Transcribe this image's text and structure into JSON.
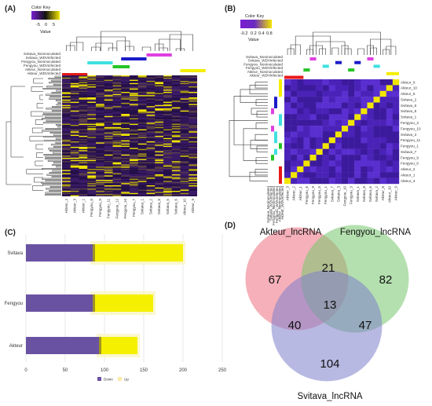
{
  "panels": {
    "a": {
      "label": "(A)",
      "color_key": {
        "title": "Color Key",
        "value_label": "Value",
        "ticks": [
          "-5",
          "0",
          "5"
        ],
        "low_color": "#7a1fd1",
        "mid_color": "#111111",
        "high_color": "#f2e600"
      },
      "side_labels": [
        "Svitava_Noninoculated",
        "Svitava_WDVinfected",
        "Fengyou_Noninoculated",
        "Fengyou_WDVinfected",
        "Akteur_Noninoculated",
        "Akteur_WDVinfected"
      ],
      "columns": [
        "Akteur_2",
        "Akteur_3",
        "Akteur_1",
        "Fengyou_8",
        "Fengyou_9",
        "Fengyou_11",
        "Fengyou_12",
        "Fengyou_10",
        "Fengyou_7",
        "Svitava_1",
        "Svitava_2",
        "Svitava_8",
        "Svitava_5",
        "Svitava_6",
        "Akteur_10",
        "Akteur_9"
      ]
    },
    "b": {
      "label": "(B)",
      "color_key": {
        "title": "Color Key",
        "value_label": "Value",
        "ticks": [
          "-0.2",
          "0.2",
          "0.4",
          "0.8"
        ],
        "low_color": "#7a1fd1",
        "high_color": "#f2e600"
      },
      "side_labels": [
        "Svitava_Noninoculated",
        "Svitava_WDVinfected",
        "Fengyou_Noninoculated",
        "Fengyou_WDVinfected",
        "Akteur_Noninoculated",
        "Akteur_WDVinfected"
      ],
      "rows": [
        "Akteur_9",
        "Akteur_10",
        "Akteur_8",
        "Svitava_2",
        "Svitava_6",
        "Svitava_8",
        "Svitava_1",
        "Fengyou_3",
        "Fengyou_10",
        "Svitava_3",
        "Fengyou_11",
        "Fengyou_1",
        "Svitava_7",
        "Fengyou_9",
        "Fengyou_6",
        "Akteur_2",
        "Akteur_1",
        "Akteur_3"
      ],
      "columns": [
        "Akteur_3",
        "Akteur_2",
        "Akteur_1",
        "Fengyou_6",
        "Fengyou_9",
        "Fengyou_5",
        "Fengyou_1",
        "Svitava_7",
        "Svitava_3",
        "Fengyou_10",
        "Fengyou_3",
        "Svitava_1",
        "Svitava_8",
        "Svitava_6",
        "Svitava_2",
        "Akteur_8",
        "Akteur_10",
        "Akteur_9"
      ]
    },
    "c": {
      "label": "(C)"
    },
    "d": {
      "label": "(D)"
    }
  },
  "chart_data": [
    {
      "type": "heatmap",
      "panel": "A",
      "color_key_range": [
        -5,
        5
      ],
      "columns": [
        "Akteur_2",
        "Akteur_3",
        "Akteur_1",
        "Fengyou_8",
        "Fengyou_9",
        "Fengyou_11",
        "Fengyou_12",
        "Fengyou_10",
        "Fengyou_7",
        "Svitava_1",
        "Svitava_2",
        "Svitava_8",
        "Svitava_5",
        "Svitava_6",
        "Akteur_10",
        "Akteur_9"
      ]
    },
    {
      "type": "heatmap",
      "panel": "B",
      "color_key_range": [
        -0.2,
        0.8
      ]
    },
    {
      "type": "bar",
      "panel": "C",
      "orientation": "horizontal",
      "stacked": true,
      "categories": [
        "Svitava",
        "Fengyou",
        "Akteur"
      ],
      "series": [
        {
          "name": "Down",
          "color": "#6a52a3",
          "values": [
            85,
            85,
            93
          ]
        },
        {
          "name": "Up",
          "color": "#f5ef00",
          "values": [
            115,
            77,
            49
          ]
        }
      ],
      "xlim": [
        0,
        250
      ],
      "xticks": [
        0,
        50,
        100,
        150,
        200,
        250
      ],
      "grid": true,
      "legend": "bottom"
    },
    {
      "type": "venn",
      "panel": "D",
      "sets": [
        {
          "name": "Akteur_lncRNA",
          "color": "#ee7080"
        },
        {
          "name": "Fengyou_lncRNA",
          "color": "#78c86e"
        },
        {
          "name": "Svitava_lncRNA",
          "color": "#7f80cc"
        }
      ],
      "regions": {
        "akteur_only": 67,
        "fengyou_only": 82,
        "svitava_only": 104,
        "akteur_fengyou": 21,
        "akteur_svitava": 40,
        "fengyou_svitava": 47,
        "all_three": 13
      }
    }
  ]
}
